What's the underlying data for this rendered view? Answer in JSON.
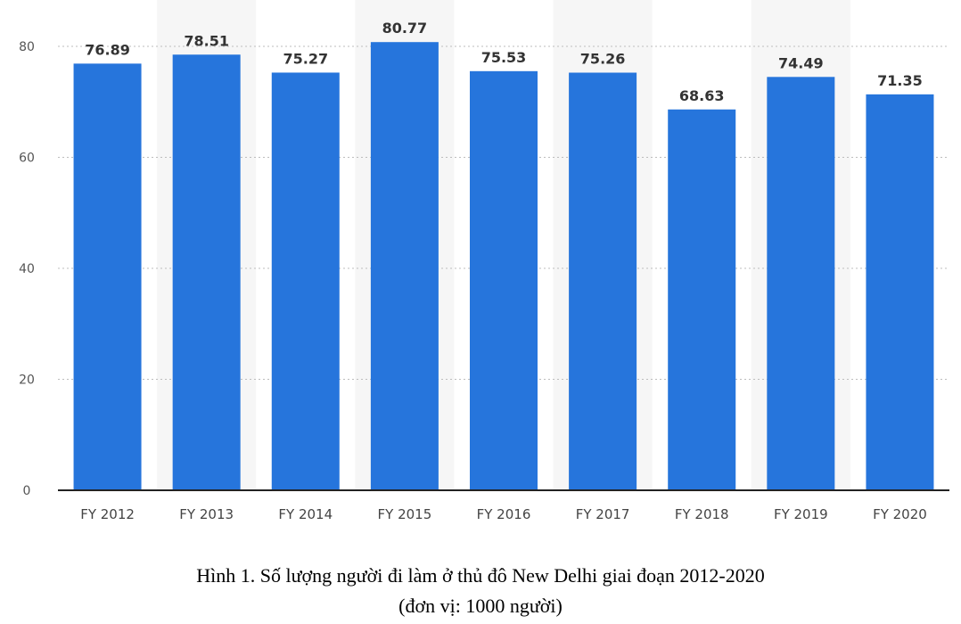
{
  "chart_data": {
    "type": "bar",
    "categories": [
      "FY 2012",
      "FY 2013",
      "FY 2014",
      "FY 2015",
      "FY 2016",
      "FY 2017",
      "FY 2018",
      "FY 2019",
      "FY 2020"
    ],
    "values": [
      76.89,
      78.51,
      75.27,
      80.77,
      75.53,
      75.26,
      68.63,
      74.49,
      71.35
    ],
    "value_labels": [
      "76.89",
      "78.51",
      "75.27",
      "80.77",
      "75.53",
      "75.26",
      "68.63",
      "74.49",
      "71.35"
    ],
    "ylim": [
      0,
      80
    ],
    "yticks": [
      "0",
      "20",
      "40",
      "60",
      "80"
    ],
    "grid": true,
    "bar_color": "#2675dc",
    "alternating_band_color": "#f6f6f6"
  },
  "caption": {
    "line1": "Hình 1. Số lượng người đi làm ở thủ đô New Delhi giai đoạn 2012-2020",
    "line2": "(đơn vị: 1000 người)"
  }
}
